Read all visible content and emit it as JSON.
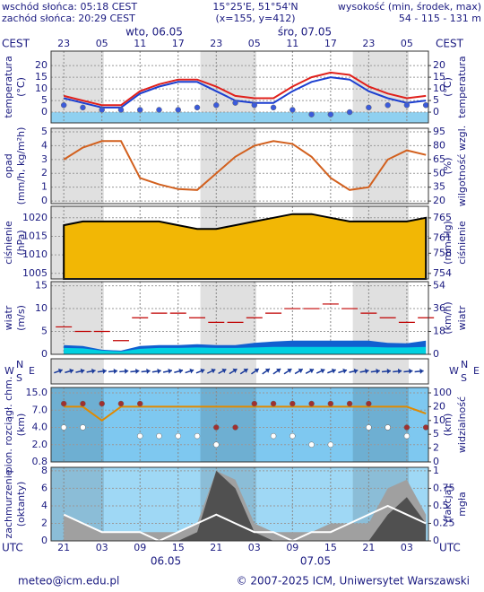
{
  "header": {
    "sunrise": "wschód słońca: 05:18 CEST",
    "sunset": "zachód słońca: 20:29 CEST",
    "coords": "15°25'E, 51°54'N",
    "grid": "(x=155, y=412)",
    "elevation_label": "wysokość (min, środek, max)",
    "elevation": "54 - 115 - 131 m"
  },
  "time": {
    "xlim": [
      19,
      78.4
    ],
    "x": [
      21,
      24,
      27,
      30,
      33,
      36,
      39,
      42,
      45,
      48,
      51,
      54,
      57,
      60,
      63,
      66,
      69,
      72,
      75,
      78
    ],
    "top_label": "CEST",
    "bottom_label": "UTC",
    "top_ticks": [
      {
        "value": 21,
        "label": "23"
      },
      {
        "value": 27,
        "label": "05"
      },
      {
        "value": 33,
        "label": "11"
      },
      {
        "value": 39,
        "label": "17"
      },
      {
        "value": 45,
        "label": "23"
      },
      {
        "value": 51,
        "label": "05"
      },
      {
        "value": 57,
        "label": "11"
      },
      {
        "value": 63,
        "label": "17"
      },
      {
        "value": 69,
        "label": "23"
      },
      {
        "value": 75,
        "label": "05"
      }
    ],
    "bottom_ticks": [
      {
        "value": 21,
        "label": "21"
      },
      {
        "value": 27,
        "label": "03"
      },
      {
        "value": 33,
        "label": "09"
      },
      {
        "value": 39,
        "label": "15"
      },
      {
        "value": 45,
        "label": "21"
      },
      {
        "value": 51,
        "label": "03"
      },
      {
        "value": 57,
        "label": "09"
      },
      {
        "value": 63,
        "label": "15"
      },
      {
        "value": 69,
        "label": "21"
      },
      {
        "value": 75,
        "label": "03"
      }
    ],
    "day_labels_top": [
      "wto, 06.05",
      "śro, 07.05"
    ],
    "day_labels_bottom": [
      "06.05",
      "07.05"
    ]
  },
  "wind_direction": {
    "compass_left": [
      "N",
      "W",
      "E",
      "S"
    ],
    "compass_right": [
      "N",
      "W",
      "E",
      "S"
    ]
  },
  "chart_data": [
    {
      "type": "line",
      "ylabel": [
        "temperatura",
        "(°C)"
      ],
      "y2label": [
        "(°C)",
        "temperatura"
      ],
      "ylim": [
        -4.6,
        26.2
      ],
      "yticks": [
        0,
        5,
        10,
        15,
        20
      ],
      "y2lim": [
        -4.6,
        26.2
      ],
      "y2ticks": [
        0,
        5,
        10,
        15,
        20
      ],
      "series": [
        {
          "style": "line",
          "color": "#1c3fd0",
          "values": [
            6,
            4,
            2,
            2,
            8,
            11,
            13,
            13,
            9,
            5,
            4,
            4,
            9,
            13,
            15,
            14,
            9,
            6,
            4,
            5
          ]
        },
        {
          "style": "line",
          "color": "#e0201b",
          "values": [
            7,
            5,
            3,
            3,
            9,
            12,
            14,
            14,
            11,
            7,
            6,
            6,
            11,
            15,
            17,
            16,
            11,
            8,
            6,
            7
          ]
        },
        {
          "style": "dots",
          "color": "#3b5bdb",
          "values": [
            3,
            2,
            1,
            1,
            1,
            1,
            1,
            2,
            3,
            4,
            3,
            2,
            1,
            -1,
            -1,
            0,
            2,
            3,
            3,
            3
          ]
        }
      ]
    },
    {
      "type": "line",
      "ylabel": [
        "opad",
        "(mm/h, kg/m²h)"
      ],
      "y2label": [
        "(%)",
        "wilgotność wzgl."
      ],
      "ylim": [
        -0.19,
        5.26
      ],
      "yticks": [
        0,
        1,
        2,
        3,
        4,
        5
      ],
      "y2lim": [
        17.2,
        98.9
      ],
      "y2ticks": [
        20,
        35,
        50,
        65,
        80,
        95
      ],
      "series": [
        {
          "style": "line",
          "axis": "y2",
          "color": "#d2601e",
          "values": [
            65,
            78,
            85,
            85,
            45,
            38,
            33,
            32,
            50,
            68,
            80,
            85,
            82,
            68,
            45,
            32,
            35,
            65,
            75,
            70
          ]
        }
      ]
    },
    {
      "type": "line",
      "ylabel": [
        "ciśnienie",
        "(hPa)"
      ],
      "y2label": [
        "(mm Hg)",
        "ciśnienie"
      ],
      "ylim": [
        1003.5,
        1023.1
      ],
      "yticks": [
        1005,
        1010,
        1015,
        1020
      ],
      "y2lim": [
        752.9,
        767.3
      ],
      "y2ticks": [
        754,
        758,
        761,
        765
      ],
      "series": [
        {
          "style": "area",
          "color": "#f2b705",
          "stroke": "#000000",
          "values": [
            1018,
            1019,
            1019,
            1019,
            1019,
            1019,
            1018,
            1017,
            1017,
            1018,
            1019,
            1020,
            1021,
            1021,
            1020,
            1019,
            1019,
            1019,
            1019,
            1020
          ]
        }
      ]
    },
    {
      "type": "line",
      "ylabel": [
        "wiatr",
        "(m/s)"
      ],
      "y2label": [
        "(km/h)",
        "wiatr"
      ],
      "ylim": [
        0,
        15.9
      ],
      "yticks": [
        0,
        5,
        10,
        15
      ],
      "y2lim": [
        0,
        57.2
      ],
      "y2ticks": [
        0,
        18,
        36,
        54
      ],
      "series": [
        {
          "style": "area",
          "color": "#1060d0",
          "values": [
            2,
            1.8,
            1,
            0.8,
            1.8,
            2,
            2,
            2.2,
            2,
            2,
            2.5,
            2.8,
            3,
            3,
            3,
            3,
            3,
            2.5,
            2.4,
            3
          ]
        },
        {
          "style": "area",
          "color": "#00d0e0",
          "values": [
            1.4,
            1.3,
            0.8,
            0.6,
            1.2,
            1.4,
            1.4,
            1.5,
            1.4,
            1.4,
            1.5,
            1.6,
            1.6,
            1.6,
            1.6,
            1.6,
            1.6,
            1.5,
            1.5,
            1.6
          ]
        },
        {
          "style": "dashes",
          "color": "#c00000",
          "values": [
            6,
            5,
            5,
            3,
            8,
            9,
            9,
            8,
            7,
            7,
            8,
            9,
            10,
            10,
            11,
            10,
            9,
            8,
            7,
            8
          ]
        }
      ]
    },
    {
      "type": "line",
      "scale": "ticks",
      "ylabel": [
        "pion. rozciągł. chm.",
        "(km)"
      ],
      "y2label": [
        "(km)",
        "widzialność"
      ],
      "ylim": [
        0.8,
        15
      ],
      "yticks": [
        {
          "value": 15,
          "label": "15.0"
        },
        {
          "value": 7,
          "label": "7.0"
        },
        {
          "value": 4,
          "label": "4.0"
        },
        {
          "value": 2,
          "label": "2.0"
        },
        0.8
      ],
      "y2lim": [
        0,
        100
      ],
      "y2ticks": [
        100,
        20,
        10,
        5,
        2,
        0
      ],
      "series": [
        {
          "style": "line",
          "axis": "y2",
          "color": "#e08a00",
          "values": [
            20,
            20,
            10,
            20,
            20,
            20,
            20,
            20,
            20,
            20,
            20,
            20,
            20,
            20,
            20,
            20,
            20,
            20,
            20,
            15
          ]
        },
        {
          "style": "dots",
          "color": "#a03030",
          "values": [
            10,
            10,
            10,
            10,
            10,
            null,
            null,
            null,
            4,
            4,
            10,
            10,
            10,
            10,
            10,
            10,
            10,
            4,
            4,
            4
          ]
        },
        {
          "style": "dots",
          "color": "#ffffff",
          "values": [
            4,
            4,
            null,
            null,
            3,
            3,
            3,
            3,
            2,
            null,
            null,
            3,
            3,
            2,
            2,
            null,
            4,
            4,
            3,
            null
          ]
        }
      ]
    },
    {
      "type": "line",
      "ylabel": [
        "zachmurzenie",
        "(oktanty)"
      ],
      "y2label": [
        "(fakcja)",
        "mgła"
      ],
      "ylim": [
        0,
        8.4
      ],
      "yticks": [
        0,
        2,
        4,
        6,
        8
      ],
      "y2lim": [
        0,
        1.05
      ],
      "y2ticks": [
        0,
        0.25,
        0.5,
        0.75,
        1
      ],
      "series": [
        {
          "style": "area",
          "color": "#a0a0a0",
          "values": [
            3,
            2,
            1,
            1,
            1,
            1,
            1,
            2,
            8,
            7,
            2,
            1,
            1,
            1,
            2,
            2,
            2,
            6,
            7,
            3
          ]
        },
        {
          "style": "area",
          "color": "#505050",
          "values": [
            0,
            0,
            0,
            0,
            0,
            0,
            0,
            1,
            8,
            6,
            1,
            0,
            0,
            0,
            0,
            0,
            0,
            3,
            5,
            2
          ]
        },
        {
          "style": "line",
          "color": "#ffffff",
          "values": [
            3,
            2,
            1,
            1,
            1,
            0,
            1,
            2,
            3,
            2,
            1,
            1,
            0,
            1,
            1,
            2,
            3,
            4,
            3,
            2
          ]
        }
      ]
    }
  ],
  "footer": {
    "email": "meteo@icm.edu.pl",
    "copyright": "© 2007-2025 ICM, Uniwersytet Warszawski"
  }
}
